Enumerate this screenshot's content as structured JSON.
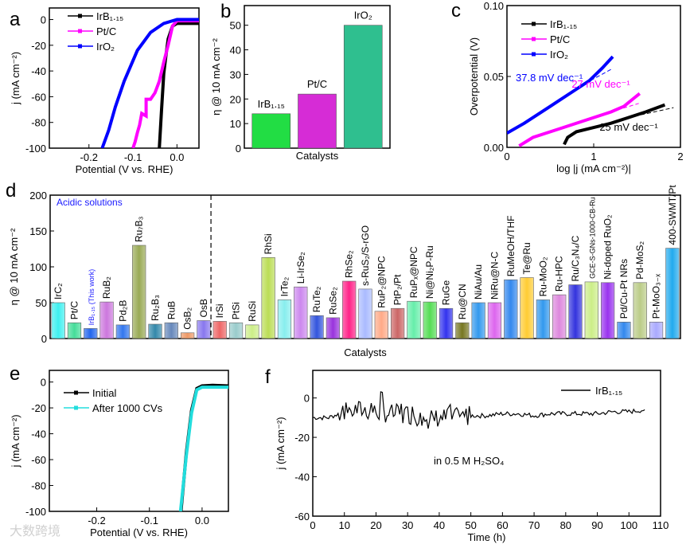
{
  "watermark": "大数跨境",
  "chart_data": [
    {
      "panel": "a",
      "type": "line",
      "xlabel": "Potential (V vs. RHE)",
      "ylabel": "j (mA cm⁻²)",
      "xlim": [
        -0.29,
        0.05
      ],
      "ylim": [
        -100,
        9
      ],
      "xticks": [
        -0.2,
        -0.1,
        0.0
      ],
      "xtick_labels": [
        "-0.2",
        "-0.1",
        "0.0"
      ],
      "yticks": [
        0,
        -20,
        -40,
        -60,
        -80,
        -100
      ],
      "ytick_labels": [
        "0",
        "-20",
        "-40",
        "-60",
        "-80",
        "-100"
      ],
      "legend_position": "top-left",
      "series": [
        {
          "name": "IrB₁.₁₅",
          "color": "#000000",
          "points": [
            [
              0.05,
              -3
            ],
            [
              0.0,
              -3
            ],
            [
              -0.01,
              -5
            ],
            [
              -0.02,
              -15
            ],
            [
              -0.025,
              -28
            ],
            [
              -0.03,
              -42
            ],
            [
              -0.035,
              -70
            ],
            [
              -0.04,
              -100
            ]
          ]
        },
        {
          "name": "Pt/C",
          "color": "#ff00ff",
          "points": [
            [
              0.05,
              -1
            ],
            [
              0.0,
              -1
            ],
            [
              -0.01,
              -5
            ],
            [
              -0.02,
              -20
            ],
            [
              -0.03,
              -33
            ],
            [
              -0.04,
              -48
            ],
            [
              -0.05,
              -57
            ],
            [
              -0.06,
              -62
            ],
            [
              -0.07,
              -62
            ],
            [
              -0.07,
              -75
            ],
            [
              -0.08,
              -73
            ],
            [
              -0.085,
              -82
            ],
            [
              -0.09,
              -88
            ],
            [
              -0.095,
              -95
            ],
            [
              -0.1,
              -100
            ]
          ]
        },
        {
          "name": "IrO₂",
          "color": "#0000ff",
          "points": [
            [
              0.05,
              0
            ],
            [
              0.0,
              0
            ],
            [
              -0.03,
              -3
            ],
            [
              -0.06,
              -10
            ],
            [
              -0.09,
              -24
            ],
            [
              -0.12,
              -48
            ],
            [
              -0.14,
              -68
            ],
            [
              -0.155,
              -86
            ],
            [
              -0.17,
              -100
            ]
          ]
        }
      ]
    },
    {
      "panel": "b",
      "type": "bar",
      "xlabel": "Catalysts",
      "ylabel": "η @ 10 mA cm⁻²",
      "ylim": [
        0,
        58
      ],
      "yticks": [
        0,
        10,
        20,
        30,
        40,
        50
      ],
      "ytick_labels": [
        "0",
        "10",
        "20",
        "30",
        "40",
        "50"
      ],
      "categories": [
        "IrB₁.₁₅",
        "Pt/C",
        "IrO₂"
      ],
      "values": [
        14,
        22,
        50
      ],
      "colors": [
        "#22dd44",
        "#d62cd6",
        "#2fbf8f"
      ]
    },
    {
      "panel": "c",
      "type": "line",
      "xlabel": "log |j (mA cm⁻²)|",
      "ylabel": "Overpotential (V)",
      "xlim": [
        0,
        2
      ],
      "ylim": [
        0,
        0.1
      ],
      "xticks": [
        0,
        1,
        2
      ],
      "xtick_labels": [
        "0",
        "1",
        "2"
      ],
      "yticks": [
        0,
        0.05,
        0.1
      ],
      "ytick_labels": [
        "0.00",
        "0.05",
        "0.10"
      ],
      "legend_position": "top-left",
      "series": [
        {
          "name": "IrB₁.₁₅",
          "color": "#000000",
          "points": [
            [
              0.66,
              0.002
            ],
            [
              0.7,
              0.007
            ],
            [
              0.8,
              0.011
            ],
            [
              1.0,
              0.014
            ],
            [
              1.2,
              0.017
            ],
            [
              1.4,
              0.021
            ],
            [
              1.6,
              0.025
            ],
            [
              1.82,
              0.03
            ]
          ],
          "fit": [
            [
              1.4,
              0.021
            ],
            [
              1.92,
              0.028
            ]
          ],
          "annotation": "25 mV dec⁻¹"
        },
        {
          "name": "Pt/C",
          "color": "#ff00ff",
          "points": [
            [
              0.14,
              0.001
            ],
            [
              0.3,
              0.007
            ],
            [
              0.6,
              0.013
            ],
            [
              1.0,
              0.021
            ],
            [
              1.2,
              0.025
            ],
            [
              1.35,
              0.029
            ],
            [
              1.45,
              0.034
            ],
            [
              1.53,
              0.038
            ]
          ],
          "fit": [
            [
              1.2,
              0.025
            ],
            [
              1.52,
              0.031
            ]
          ],
          "annotation": "27 mV dec⁻¹"
        },
        {
          "name": "IrO₂",
          "color": "#0000ff",
          "points": [
            [
              0.0,
              0.01
            ],
            [
              0.2,
              0.017
            ],
            [
              0.5,
              0.029
            ],
            [
              0.8,
              0.041
            ],
            [
              0.95,
              0.047
            ],
            [
              1.1,
              0.056
            ],
            [
              1.22,
              0.064
            ]
          ],
          "fit": [
            [
              0.9,
              0.045
            ],
            [
              1.2,
              0.055
            ]
          ],
          "annotation": "37.8 mV dec⁻¹"
        }
      ]
    },
    {
      "panel": "d",
      "type": "bar",
      "xlabel": "Catalysts",
      "ylabel": "η @ 10 mA cm⁻²",
      "ylim": [
        0,
        200
      ],
      "yticks": [
        0,
        50,
        100,
        150,
        200
      ],
      "ytick_labels": [
        "0",
        "50",
        "100",
        "150",
        "200"
      ],
      "annotation": "Acidic solutions",
      "highlight": "IrB₁.₁₅ (This work)",
      "categories": [
        "IrC₂",
        "Pt/C",
        "IrB₁.₁₅ (This work)",
        "RuB₂",
        "Pd₂B",
        "Ru₇B₃",
        "Ru₂B₃",
        "RuB",
        "OsB₂",
        "OsB",
        "IrSi",
        "PtSi",
        "RuSi",
        "RhSi",
        "IrTe₂",
        "Li-IrSe₂",
        "RuTe₂",
        "RuSe₂",
        "RhSe₂",
        "s-RuS₂/S-rGO",
        "RuP₂@NPC",
        "PtP₂/Pt",
        "RuPₓ@NPC",
        "Ni@Ni₂P-Ru",
        "RuGe",
        "Ru@CN",
        "NiAu/Au",
        "NiRu@N-C",
        "RuMeOH/THF",
        "Te@Ru",
        "Ru-MoO₂",
        "Ru-HPC",
        "Ru/C₃N₄/C",
        "GCE-S-GNs-1000-CB-Ru",
        "Ni-doped RuO₂",
        "Pd/Cu-Pt NRs",
        "Pd-MoS₂",
        "Pt-MoO₃₋ₓ",
        "400-SWMT/Pt"
      ],
      "values": [
        50,
        22,
        14,
        51,
        19,
        130,
        20,
        22,
        8,
        25,
        24,
        22,
        19,
        113,
        54,
        72,
        32,
        29,
        80,
        69,
        38,
        42,
        52,
        51,
        42,
        22,
        50,
        50,
        82,
        85,
        54,
        61,
        75,
        79,
        78,
        23,
        78,
        23,
        126
      ],
      "colors": [
        "#3ef0f0",
        "#44dd99",
        "#2266ee",
        "#cc77dd",
        "#3377ee",
        "#99aa55",
        "#3388aa",
        "#6688bb",
        "#ee9966",
        "#8877ee",
        "#ee6666",
        "#99cccc",
        "#ccee88",
        "#bbdd55",
        "#88eeee",
        "#cc88ee",
        "#3355dd",
        "#9933dd",
        "#ff2288",
        "#aabbff",
        "#ffaa88",
        "#cc6666",
        "#66eeaa",
        "#55dd55",
        "#3333ee",
        "#777722",
        "#3399ee",
        "#dd66ee",
        "#3388ee",
        "#ffcc33",
        "#3399ee",
        "#dd88dd",
        "#3333dd",
        "#ccee88",
        "#9933ee",
        "#3388ee",
        "#bbcc88",
        "#aaaaff",
        "#22aaee"
      ],
      "divider_after_index": 9
    },
    {
      "panel": "e",
      "type": "line",
      "xlabel": "Potential (V vs. RHE)",
      "ylabel": "j (mA cm⁻²)",
      "xlim": [
        -0.29,
        0.05
      ],
      "ylim": [
        -100,
        9
      ],
      "xticks": [
        -0.2,
        -0.1,
        0.0
      ],
      "xtick_labels": [
        "-0.2",
        "-0.1",
        "0.0"
      ],
      "yticks": [
        0,
        -20,
        -40,
        -60,
        -80,
        -100
      ],
      "ytick_labels": [
        "0",
        "-20",
        "-40",
        "-60",
        "-80",
        "-100"
      ],
      "legend_position": "top-left",
      "series": [
        {
          "name": "Initial",
          "color": "#000000",
          "points": [
            [
              0.05,
              -3
            ],
            [
              0.02,
              -2.5
            ],
            [
              0.0,
              -3
            ],
            [
              -0.01,
              -5
            ],
            [
              -0.02,
              -22
            ],
            [
              -0.03,
              -55
            ],
            [
              -0.04,
              -100
            ]
          ]
        },
        {
          "name": "After 1000 CVs",
          "color": "#22dddd",
          "points": [
            [
              0.05,
              -4
            ],
            [
              0.02,
              -4
            ],
            [
              0.0,
              -4
            ],
            [
              -0.01,
              -6
            ],
            [
              -0.02,
              -24
            ],
            [
              -0.03,
              -57
            ],
            [
              -0.041,
              -100
            ]
          ]
        }
      ]
    },
    {
      "panel": "f",
      "type": "line",
      "xlabel": "Time (h)",
      "ylabel": "j (mA cm⁻²)",
      "xlim": [
        0,
        110
      ],
      "ylim": [
        -60,
        14
      ],
      "xticks": [
        0,
        10,
        20,
        30,
        40,
        50,
        60,
        70,
        80,
        90,
        100,
        110
      ],
      "xtick_labels": [
        "0",
        "10",
        "20",
        "30",
        "40",
        "50",
        "60",
        "70",
        "80",
        "90",
        "100",
        "110"
      ],
      "yticks": [
        0,
        -20,
        -40,
        -60
      ],
      "ytick_labels": [
        "0",
        "-20",
        "-40",
        "-60"
      ],
      "annotation": "in 0.5 M H₂SO₄",
      "legend_position": "top-right",
      "series": [
        {
          "name": "IrB₁.₁₅",
          "color": "#000000",
          "x": [
            0,
            5,
            10,
            15,
            20,
            25,
            30,
            35,
            40,
            45,
            50,
            55,
            60,
            65,
            70,
            75,
            80,
            85,
            90,
            95,
            100,
            105
          ],
          "values": [
            -10,
            -10,
            -7,
            -6,
            -7,
            -8,
            -8,
            -11,
            -10,
            -10,
            -9,
            -9,
            -8,
            -8,
            -9,
            -8,
            -8,
            -8,
            -8,
            -7,
            -7,
            -6
          ]
        }
      ]
    }
  ]
}
